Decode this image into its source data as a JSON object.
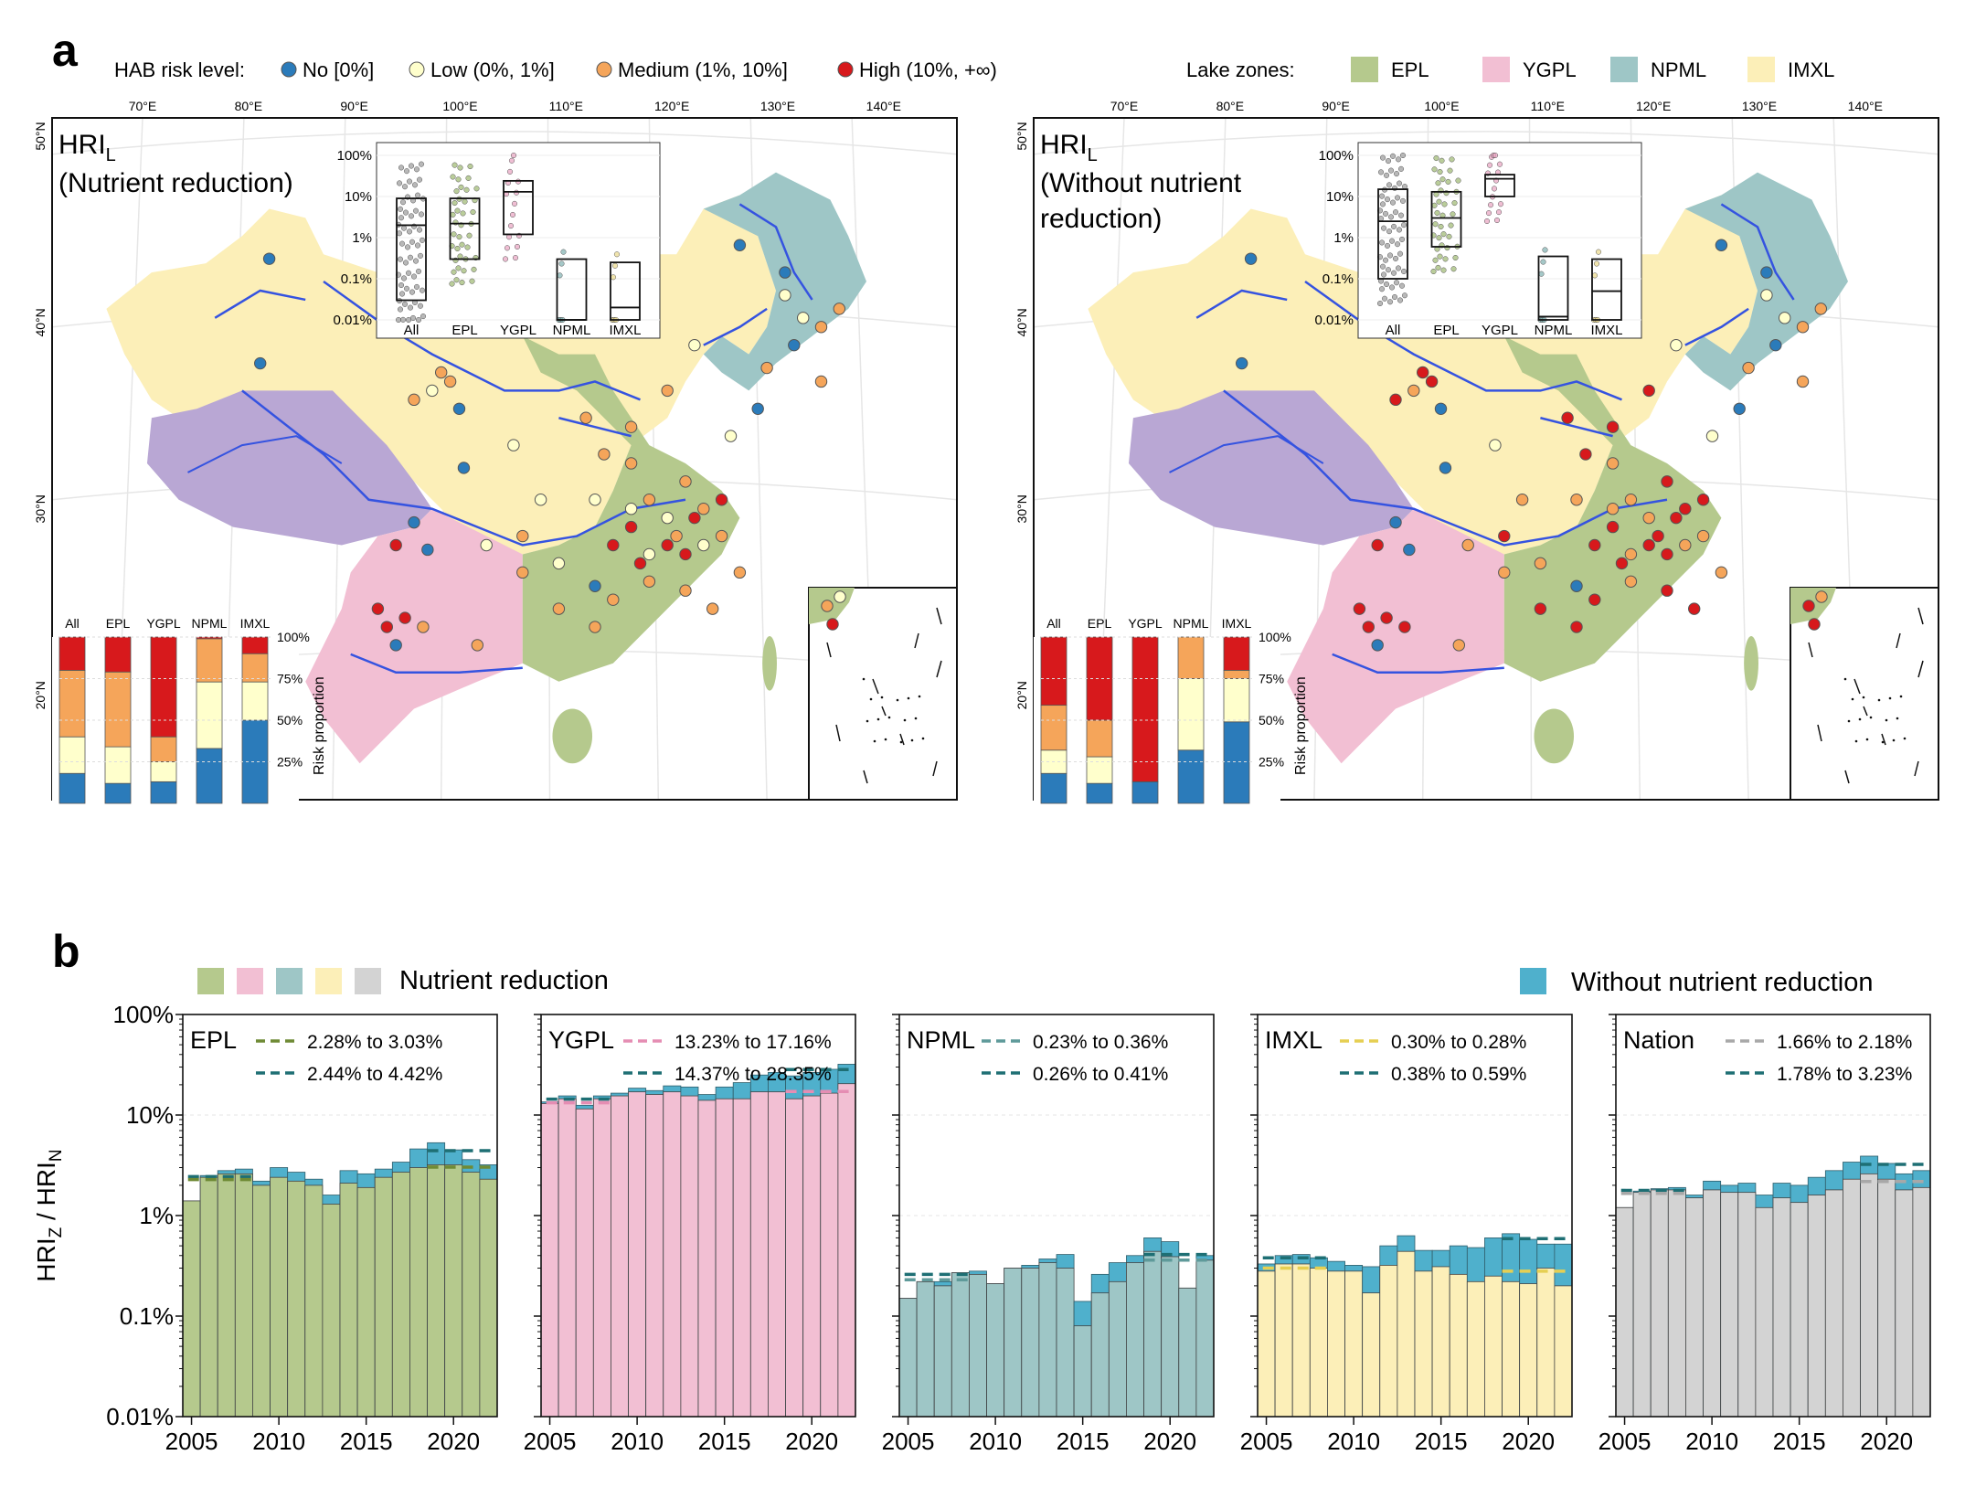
{
  "panel_labels": {
    "a": "a",
    "b": "b"
  },
  "legend_risk": {
    "title": "HAB risk level:",
    "items": [
      {
        "label": "No [0%]",
        "color": "#2b7bba"
      },
      {
        "label": "Low (0%, 1%]",
        "color": "#ffffcc"
      },
      {
        "label": "Medium (1%, 10%]",
        "color": "#f5a55a"
      },
      {
        "label": "High (10%, +∞)",
        "color": "#d7191c"
      }
    ]
  },
  "legend_zones": {
    "title": "Lake zones:",
    "items": [
      {
        "label": "EPL",
        "color": "#b5c98d"
      },
      {
        "label": "YGPL",
        "color": "#f2bfd3"
      },
      {
        "label": "NPML",
        "color": "#9ec6c6"
      },
      {
        "label": "IMXL",
        "color": "#fcefb8"
      }
    ]
  },
  "maps": [
    {
      "title_main": "HRI",
      "title_sub": "L",
      "title_line1": "(Nutrient reduction)",
      "title_line2": ""
    },
    {
      "title_main": "HRI",
      "title_sub": "L",
      "title_line1": "(Without nutrient",
      "title_line2": "reduction)"
    }
  ],
  "map_lon_labels": [
    "70°E",
    "80°E",
    "90°E",
    "100°E",
    "110°E",
    "120°E",
    "130°E",
    "140°E"
  ],
  "map_lat_labels": [
    "50°N",
    "40°N",
    "30°N",
    "20°N"
  ],
  "map_region_colors": {
    "tibet": "#b9a7d4",
    "river": "#3553e0"
  },
  "legend_b": {
    "reduction_label": "Nutrient reduction",
    "reduction_swatches": [
      "#b5c98d",
      "#f2bfd3",
      "#9ec6c6",
      "#fcefb8",
      "#d3d3d3"
    ],
    "without_label": "Without nutrient reduction",
    "without_color": "#4fb0cc"
  },
  "chart_data": [
    {
      "type": "box",
      "panel": "a-left-inset",
      "categories": [
        "All",
        "EPL",
        "YGPL",
        "NPML",
        "IMXL"
      ],
      "yticks": [
        "100%",
        "10%",
        "1%",
        "0.1%",
        "0.01%"
      ],
      "boxes": [
        {
          "q1": 0.03,
          "median": 2,
          "q3": 9
        },
        {
          "q1": 0.3,
          "median": 2.2,
          "q3": 9
        },
        {
          "q1": 1.2,
          "median": 13,
          "q3": 24
        },
        {
          "q1": 0.01,
          "median": 0.01,
          "q3": 0.3
        },
        {
          "q1": 0.01,
          "median": 0.02,
          "q3": 0.25
        }
      ]
    },
    {
      "type": "box",
      "panel": "a-right-inset",
      "categories": [
        "All",
        "EPL",
        "YGPL",
        "NPML",
        "IMXL"
      ],
      "yticks": [
        "100%",
        "10%",
        "1%",
        "0.1%",
        "0.01%"
      ],
      "boxes": [
        {
          "q1": 0.1,
          "median": 2.5,
          "q3": 15
        },
        {
          "q1": 0.6,
          "median": 3,
          "q3": 13
        },
        {
          "q1": 10,
          "median": 27,
          "q3": 34
        },
        {
          "q1": 0.01,
          "median": 0.012,
          "q3": 0.35
        },
        {
          "q1": 0.01,
          "median": 0.05,
          "q3": 0.3
        }
      ]
    },
    {
      "type": "bar",
      "stacked": true,
      "panel": "a-left-stack",
      "categories": [
        "All",
        "EPL",
        "YGPL",
        "NPML",
        "IMXL"
      ],
      "yticks": [
        "100%",
        "75%",
        "50%",
        "25%"
      ],
      "ylabel": "Risk proportion",
      "series": [
        {
          "name": "No [0%]",
          "values": [
            18,
            12,
            13,
            33,
            50
          ]
        },
        {
          "name": "Low (0%, 1%]",
          "values": [
            22,
            22,
            12,
            40,
            23
          ]
        },
        {
          "name": "Medium (1%, 10%]",
          "values": [
            40,
            45,
            15,
            26,
            17
          ]
        },
        {
          "name": "High (10%, +∞)",
          "values": [
            20,
            21,
            60,
            1,
            10
          ]
        }
      ]
    },
    {
      "type": "bar",
      "stacked": true,
      "panel": "a-right-stack",
      "categories": [
        "All",
        "EPL",
        "YGPL",
        "NPML",
        "IMXL"
      ],
      "yticks": [
        "100%",
        "75%",
        "50%",
        "25%"
      ],
      "ylabel": "Risk proportion",
      "series": [
        {
          "name": "No [0%]",
          "values": [
            18,
            12,
            13,
            32,
            49
          ]
        },
        {
          "name": "Low (0%, 1%]",
          "values": [
            14,
            16,
            0,
            43,
            26
          ]
        },
        {
          "name": "Medium (1%, 10%]",
          "values": [
            27,
            22,
            0,
            25,
            5
          ]
        },
        {
          "name": "High (10%, +∞)",
          "values": [
            41,
            50,
            87,
            0,
            20
          ]
        }
      ]
    },
    {
      "type": "bar",
      "panel": "b",
      "ylabel_main": "HRI",
      "ylabel_sub1": "Z",
      "ylabel_sep": " / HRI",
      "ylabel_sub2": "N",
      "yscale": "log",
      "ylim": [
        0.01,
        100
      ],
      "yticks": [
        "100%",
        "10%",
        "1%",
        "0.1%",
        "0.01%"
      ],
      "x": [
        2005,
        2006,
        2007,
        2008,
        2009,
        2010,
        2011,
        2012,
        2013,
        2014,
        2015,
        2016,
        2017,
        2018,
        2019,
        2020,
        2021,
        2022
      ],
      "xticks": [
        "2005",
        "2010",
        "2015",
        "2020"
      ],
      "panels": [
        {
          "name": "EPL",
          "color": "#b5c98d",
          "trend_color": "#6f8a35",
          "note_reduction": "2.28% to 3.03%",
          "note_without": "2.44% to 4.42%",
          "reduction": [
            1.4,
            2.4,
            2.6,
            2.6,
            2.0,
            2.4,
            2.2,
            2.0,
            1.3,
            2.1,
            1.9,
            2.4,
            2.7,
            3.0,
            3.2,
            3.2,
            2.7,
            2.3
          ],
          "without": [
            1.4,
            2.5,
            2.8,
            2.9,
            2.2,
            3.0,
            2.7,
            2.3,
            1.6,
            2.8,
            2.6,
            2.9,
            3.4,
            4.6,
            5.3,
            4.5,
            3.6,
            3.2
          ],
          "trend_reduction": [
            2.28,
            3.03
          ],
          "trend_without": [
            2.44,
            4.42
          ]
        },
        {
          "name": "YGPL",
          "color": "#f2bfd3",
          "trend_color": "#e58db3",
          "note_reduction": "13.23% to 17.16%",
          "note_without": "14.37% to 28.35%",
          "reduction": [
            13.0,
            14.5,
            11.5,
            14.5,
            15.5,
            17.0,
            16.0,
            17.0,
            15.5,
            14.0,
            14.5,
            14.5,
            17.0,
            17.0,
            14.5,
            15.5,
            16.5,
            20.5
          ],
          "without": [
            13.5,
            15.5,
            12.5,
            15.5,
            16.5,
            18.5,
            17.5,
            19.5,
            19.0,
            16.0,
            19.0,
            21.0,
            25.0,
            26.5,
            24.5,
            26.5,
            28.5,
            32.0
          ],
          "trend_reduction": [
            13.23,
            17.16
          ],
          "trend_without": [
            14.37,
            28.35
          ]
        },
        {
          "name": "NPML",
          "color": "#9ec6c6",
          "trend_color": "#5f9a9a",
          "note_reduction": "0.23% to 0.36%",
          "note_without": "0.26% to 0.41%",
          "reduction": [
            0.15,
            0.22,
            0.2,
            0.27,
            0.26,
            0.21,
            0.3,
            0.3,
            0.34,
            0.3,
            0.08,
            0.17,
            0.22,
            0.34,
            0.44,
            0.39,
            0.19,
            0.36
          ],
          "without": [
            0.15,
            0.22,
            0.22,
            0.27,
            0.28,
            0.21,
            0.3,
            0.32,
            0.37,
            0.41,
            0.14,
            0.26,
            0.34,
            0.4,
            0.6,
            0.55,
            0.19,
            0.4
          ],
          "trend_reduction": [
            0.23,
            0.36
          ],
          "trend_without": [
            0.26,
            0.41
          ]
        },
        {
          "name": "IMXL",
          "color": "#fcefb8",
          "trend_color": "#e6cf52",
          "note_reduction": "0.30% to 0.28%",
          "note_without": "0.38% to 0.59%",
          "reduction": [
            0.28,
            0.33,
            0.33,
            0.3,
            0.28,
            0.28,
            0.17,
            0.32,
            0.44,
            0.28,
            0.31,
            0.26,
            0.22,
            0.25,
            0.22,
            0.21,
            0.3,
            0.2
          ],
          "without": [
            0.33,
            0.4,
            0.41,
            0.38,
            0.35,
            0.32,
            0.31,
            0.5,
            0.63,
            0.45,
            0.45,
            0.5,
            0.48,
            0.6,
            0.66,
            0.58,
            0.52,
            0.52
          ],
          "trend_reduction": [
            0.3,
            0.28
          ],
          "trend_without": [
            0.38,
            0.59
          ]
        },
        {
          "name": "Nation",
          "color": "#d3d3d3",
          "trend_color": "#a8a8a8",
          "note_reduction": "1.66% to 2.18%",
          "note_without": "1.78% to 3.23%",
          "reduction": [
            1.2,
            1.7,
            1.8,
            1.8,
            1.5,
            1.8,
            1.7,
            1.7,
            1.2,
            1.5,
            1.35,
            1.6,
            1.8,
            2.3,
            2.6,
            2.3,
            1.8,
            1.9
          ],
          "without": [
            1.2,
            1.75,
            1.85,
            1.9,
            1.6,
            2.2,
            2.0,
            2.1,
            1.6,
            2.1,
            2.0,
            2.4,
            2.8,
            3.4,
            3.9,
            3.3,
            2.6,
            2.8
          ],
          "trend_reduction": [
            1.66,
            2.18
          ],
          "trend_without": [
            1.78,
            3.23
          ]
        }
      ]
    }
  ]
}
